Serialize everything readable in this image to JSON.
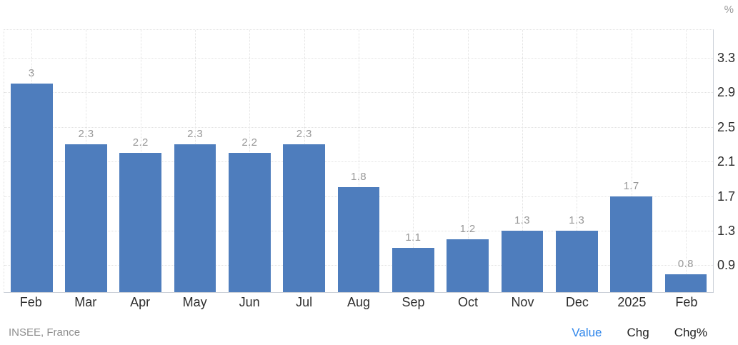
{
  "chart": {
    "unit_label": "%",
    "source": "INSEE, France",
    "bar_color": "#4e7dbd",
    "grid_color": "#e2e2e2",
    "axis_line_color": "#ccd1d9",
    "value_label_color": "#999999",
    "axis_text_color": "#2d2d2d",
    "active_link_color": "#2f86eb",
    "footer_links": [
      {
        "label": "Value",
        "active": true
      },
      {
        "label": "Chg",
        "active": false
      },
      {
        "label": "Chg%",
        "active": false
      }
    ]
  },
  "chart_data": {
    "type": "bar",
    "title": "",
    "categories": [
      "Feb",
      "Mar",
      "Apr",
      "May",
      "Jun",
      "Jul",
      "Aug",
      "Sep",
      "Oct",
      "Nov",
      "Dec",
      "2025",
      "Feb"
    ],
    "values": [
      3,
      2.3,
      2.2,
      2.3,
      2.2,
      2.3,
      1.8,
      1.1,
      1.2,
      1.3,
      1.3,
      1.7,
      0.8
    ],
    "value_labels": [
      "3",
      "2.3",
      "2.2",
      "2.3",
      "2.2",
      "2.3",
      "1.8",
      "1.1",
      "1.2",
      "1.3",
      "1.3",
      "1.7",
      "0.8"
    ],
    "xlabel": "",
    "ylabel": "%",
    "ylim": [
      0.59,
      3.62
    ],
    "yticks": [
      0.9,
      1.3,
      1.7,
      2.1,
      2.5,
      2.9,
      3.3
    ],
    "grid": true,
    "grid_style": "dotted",
    "legend": false,
    "y_axis_position": "right"
  }
}
